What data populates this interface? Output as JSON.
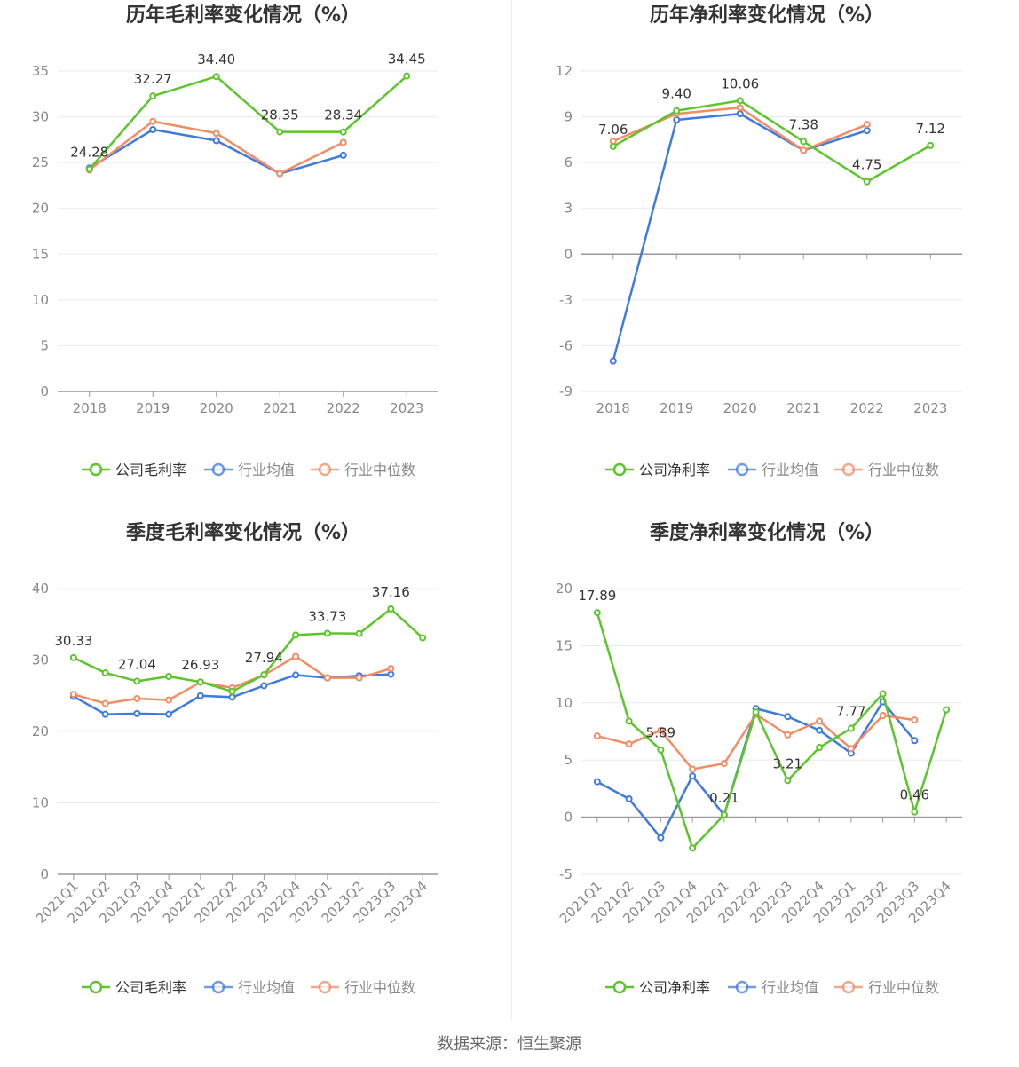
{
  "colors": {
    "company": "#5cc52b",
    "avg": "#3f7ae0",
    "median": "#f28c64",
    "grid": "#e8eaf0",
    "axis": "#999999"
  },
  "footer": {
    "source": "数据来源：恒生聚源"
  },
  "charts": [
    {
      "type": "line",
      "title": "历年毛利率变化情况（%）",
      "categories": [
        "2018",
        "2019",
        "2020",
        "2021",
        "2022",
        "2023"
      ],
      "yticks": [
        0,
        5,
        10,
        15,
        20,
        25,
        30,
        35
      ],
      "ylim": [
        0,
        35
      ],
      "series": [
        {
          "key": "company",
          "name": "公司毛利率",
          "values": [
            24.28,
            32.27,
            34.4,
            28.35,
            28.34,
            34.45
          ],
          "labels": [
            "24.28",
            "32.27",
            "34.40",
            "28.35",
            "28.34",
            "34.45"
          ]
        },
        {
          "key": "avg",
          "name": "行业均值",
          "values": [
            24.4,
            28.6,
            27.4,
            23.8,
            25.8,
            null
          ]
        },
        {
          "key": "median",
          "name": "行业中位数",
          "values": [
            24.2,
            29.5,
            28.2,
            23.8,
            27.2,
            null
          ]
        }
      ]
    },
    {
      "type": "line",
      "title": "历年净利率变化情况（%）",
      "categories": [
        "2018",
        "2019",
        "2020",
        "2021",
        "2022",
        "2023"
      ],
      "yticks": [
        -9,
        -6,
        -3,
        0,
        3,
        6,
        9,
        12
      ],
      "ylim": [
        -9,
        12
      ],
      "series": [
        {
          "key": "company",
          "name": "公司净利率",
          "values": [
            7.06,
            9.4,
            10.06,
            7.38,
            4.75,
            7.12
          ],
          "labels": [
            "7.06",
            "9.40",
            "10.06",
            "7.38",
            "4.75",
            "7.12"
          ]
        },
        {
          "key": "avg",
          "name": "行业均值",
          "values": [
            -7.0,
            8.8,
            9.2,
            6.8,
            8.1,
            null
          ]
        },
        {
          "key": "median",
          "name": "行业中位数",
          "values": [
            7.4,
            9.2,
            9.6,
            6.8,
            8.5,
            null
          ]
        }
      ]
    },
    {
      "type": "line",
      "title": "季度毛利率变化情况（%）",
      "categories": [
        "2021Q1",
        "2021Q2",
        "2021Q3",
        "2021Q4",
        "2022Q1",
        "2022Q2",
        "2022Q3",
        "2022Q4",
        "2023Q1",
        "2023Q2",
        "2023Q3",
        "2023Q4"
      ],
      "yticks": [
        0,
        10,
        20,
        30,
        40
      ],
      "ylim": [
        0,
        40
      ],
      "series": [
        {
          "key": "company",
          "name": "公司毛利率",
          "values": [
            30.33,
            28.2,
            27.04,
            27.7,
            26.93,
            25.6,
            27.94,
            33.5,
            33.73,
            33.7,
            37.16,
            33.1
          ],
          "labels": [
            "30.33",
            "",
            "27.04",
            "",
            "26.93",
            "",
            "27.94",
            "",
            "33.73",
            "",
            "37.16",
            ""
          ]
        },
        {
          "key": "avg",
          "name": "行业均值",
          "values": [
            24.9,
            22.4,
            22.5,
            22.4,
            25.0,
            24.8,
            26.4,
            27.9,
            27.5,
            27.8,
            28.0,
            null
          ]
        },
        {
          "key": "median",
          "name": "行业中位数",
          "values": [
            25.2,
            23.9,
            24.6,
            24.4,
            26.9,
            26.1,
            27.9,
            30.5,
            27.5,
            27.5,
            28.8,
            null
          ]
        }
      ]
    },
    {
      "type": "line",
      "title": "季度净利率变化情况（%）",
      "categories": [
        "2021Q1",
        "2021Q2",
        "2021Q3",
        "2021Q4",
        "2022Q1",
        "2022Q2",
        "2022Q3",
        "2022Q4",
        "2023Q1",
        "2023Q2",
        "2023Q3",
        "2023Q4"
      ],
      "yticks": [
        -5,
        0,
        5,
        10,
        15,
        20
      ],
      "ylim": [
        -5,
        20
      ],
      "series": [
        {
          "key": "company",
          "name": "公司净利率",
          "values": [
            17.89,
            8.4,
            5.89,
            -2.7,
            0.21,
            9.2,
            3.21,
            6.1,
            7.77,
            10.8,
            0.46,
            9.4
          ],
          "labels": [
            "17.89",
            "",
            "5.89",
            "",
            "0.21",
            "",
            "3.21",
            "",
            "7.77",
            "",
            "0.46",
            ""
          ]
        },
        {
          "key": "avg",
          "name": "行业均值",
          "values": [
            3.1,
            1.6,
            -1.8,
            3.6,
            0.2,
            9.5,
            8.8,
            7.6,
            5.6,
            10.1,
            6.7,
            null
          ]
        },
        {
          "key": "median",
          "name": "行业中位数",
          "values": [
            7.1,
            6.4,
            7.6,
            4.2,
            4.7,
            9.0,
            7.2,
            8.4,
            6.0,
            8.9,
            8.5,
            null
          ]
        }
      ]
    }
  ]
}
